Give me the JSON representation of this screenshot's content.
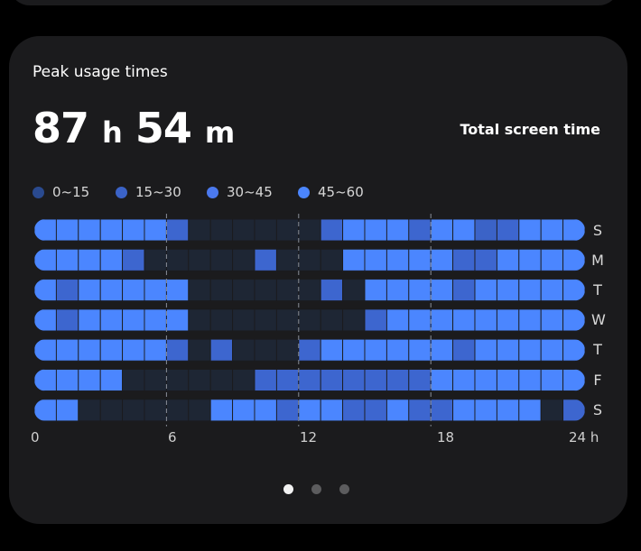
{
  "card": {
    "title": "Peak usage times",
    "total_hours": "87",
    "hours_unit": "h",
    "total_minutes": "54",
    "minutes_unit": "m",
    "total_label": "Total screen time"
  },
  "legend": [
    {
      "label": "0~15",
      "color": "#2a4a8f"
    },
    {
      "label": "15~30",
      "color": "#3b63c7"
    },
    {
      "label": "30~45",
      "color": "#4b79ee"
    },
    {
      "label": "45~60",
      "color": "#4b86ff"
    }
  ],
  "days": [
    "S",
    "M",
    "T",
    "W",
    "T",
    "F",
    "S"
  ],
  "x_axis": [
    "0",
    "6",
    "12",
    "18",
    "24 h"
  ],
  "heatmap_levels": [
    [
      4,
      4,
      4,
      4,
      4,
      4,
      3,
      0,
      0,
      0,
      0,
      0,
      0,
      3,
      4,
      4,
      4,
      3,
      4,
      4,
      2,
      3,
      4,
      4,
      4
    ],
    [
      4,
      4,
      4,
      4,
      3,
      0,
      0,
      0,
      0,
      0,
      3,
      0,
      0,
      0,
      4,
      4,
      4,
      4,
      4,
      3,
      3,
      4,
      4,
      4,
      4
    ],
    [
      4,
      3,
      4,
      4,
      4,
      4,
      4,
      0,
      0,
      0,
      0,
      0,
      0,
      3,
      0,
      4,
      4,
      4,
      4,
      3,
      4,
      4,
      4,
      4,
      4
    ],
    [
      4,
      3,
      4,
      4,
      4,
      4,
      4,
      0,
      0,
      0,
      0,
      0,
      0,
      0,
      0,
      3,
      4,
      4,
      4,
      4,
      4,
      4,
      4,
      4,
      4
    ],
    [
      4,
      4,
      4,
      4,
      4,
      4,
      3,
      0,
      3,
      0,
      0,
      0,
      3,
      4,
      4,
      4,
      4,
      4,
      4,
      3,
      4,
      4,
      4,
      4,
      4
    ],
    [
      4,
      4,
      4,
      4,
      0,
      0,
      0,
      0,
      0,
      0,
      3,
      3,
      3,
      3,
      3,
      3,
      3,
      3,
      4,
      4,
      4,
      4,
      4,
      4,
      4
    ],
    [
      4,
      4,
      0,
      0,
      0,
      0,
      0,
      0,
      4,
      4,
      4,
      3,
      4,
      4,
      3,
      3,
      4,
      3,
      3,
      4,
      4,
      4,
      4,
      0,
      3
    ]
  ],
  "level_colors": [
    "#1e2634",
    "#2a4a8f",
    "#3b63c7",
    "#3d66cf",
    "#4b86ff"
  ],
  "pager": {
    "count": 3,
    "active": 0,
    "active_color": "#f2f2f2",
    "inactive_color": "#5c5c5e"
  }
}
